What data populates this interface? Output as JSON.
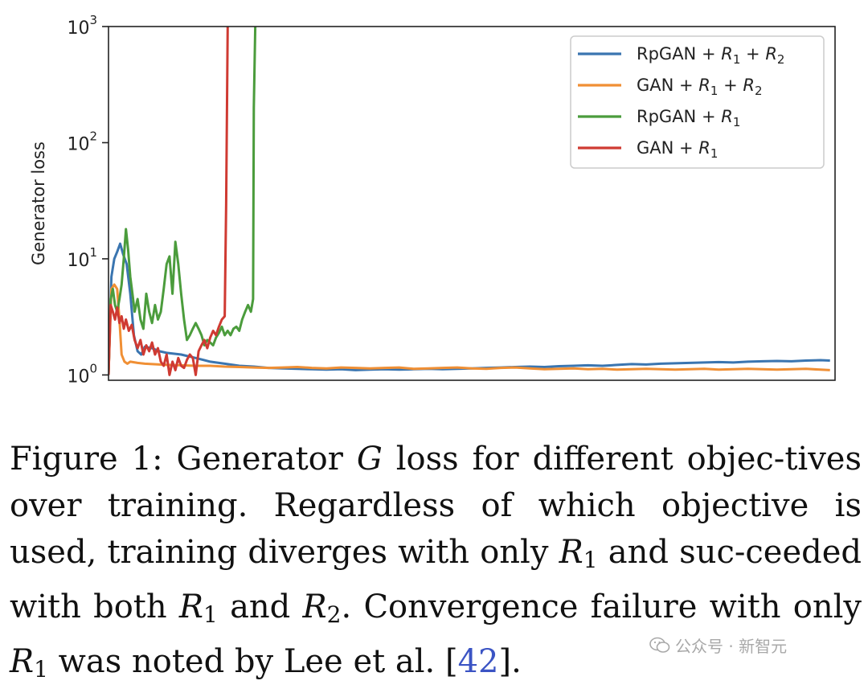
{
  "chart_data": {
    "type": "line",
    "title": "",
    "xlabel": "",
    "ylabel": "Generator loss",
    "yscale": "log",
    "ylim": [
      0.9,
      1000
    ],
    "xlim": [
      0,
      1000
    ],
    "yticks": [
      {
        "value": 1,
        "base": "10",
        "exp": "0"
      },
      {
        "value": 10,
        "base": "10",
        "exp": "1"
      },
      {
        "value": 100,
        "base": "10",
        "exp": "2"
      },
      {
        "value": 1000,
        "base": "10",
        "exp": "3"
      }
    ],
    "grid": false,
    "legend_position": "top-right",
    "series": [
      {
        "legend": {
          "prefix": "RpGAN + ",
          "terms": [
            {
              "sym": "R",
              "sub": "1"
            },
            {
              "sym": "R",
              "sub": "2"
            }
          ]
        },
        "color": "#3a75b0",
        "x": [
          0,
          4,
          8,
          12,
          16,
          20,
          25,
          30,
          35,
          40,
          45,
          50,
          60,
          70,
          80,
          100,
          120,
          140,
          160,
          180,
          200,
          220,
          240,
          260,
          280,
          300,
          320,
          340,
          360,
          380,
          400,
          420,
          440,
          460,
          480,
          500,
          520,
          540,
          560,
          580,
          600,
          620,
          640,
          660,
          680,
          700,
          720,
          740,
          760,
          780,
          800,
          820,
          840,
          860,
          880,
          900,
          920,
          940,
          960,
          980,
          993
        ],
        "y": [
          1.0,
          7.0,
          10.0,
          11.5,
          13.5,
          11.0,
          9.0,
          5.0,
          2.2,
          1.6,
          1.5,
          1.75,
          1.7,
          1.6,
          1.55,
          1.5,
          1.4,
          1.3,
          1.25,
          1.2,
          1.18,
          1.15,
          1.14,
          1.13,
          1.12,
          1.11,
          1.12,
          1.1,
          1.11,
          1.12,
          1.11,
          1.12,
          1.13,
          1.12,
          1.13,
          1.14,
          1.15,
          1.16,
          1.17,
          1.18,
          1.17,
          1.19,
          1.2,
          1.21,
          1.2,
          1.22,
          1.24,
          1.23,
          1.25,
          1.26,
          1.27,
          1.28,
          1.29,
          1.28,
          1.3,
          1.31,
          1.32,
          1.31,
          1.33,
          1.34,
          1.33
        ]
      },
      {
        "legend": {
          "prefix": "GAN + ",
          "terms": [
            {
              "sym": "R",
              "sub": "1"
            },
            {
              "sym": "R",
              "sub": "2"
            }
          ]
        },
        "color": "#f08f34",
        "x": [
          0,
          4,
          8,
          12,
          15,
          18,
          22,
          26,
          30,
          40,
          50,
          60,
          80,
          100,
          120,
          140,
          160,
          180,
          200,
          220,
          240,
          260,
          280,
          300,
          320,
          340,
          360,
          380,
          400,
          420,
          440,
          460,
          480,
          500,
          520,
          540,
          560,
          580,
          600,
          620,
          640,
          660,
          680,
          700,
          720,
          740,
          760,
          780,
          800,
          820,
          840,
          860,
          880,
          900,
          920,
          940,
          960,
          980,
          993
        ],
        "y": [
          1.0,
          5.5,
          6.0,
          5.5,
          3.0,
          1.5,
          1.3,
          1.25,
          1.3,
          1.27,
          1.25,
          1.24,
          1.22,
          1.21,
          1.2,
          1.2,
          1.18,
          1.17,
          1.16,
          1.15,
          1.16,
          1.17,
          1.15,
          1.14,
          1.16,
          1.15,
          1.14,
          1.15,
          1.16,
          1.13,
          1.14,
          1.15,
          1.16,
          1.14,
          1.13,
          1.15,
          1.16,
          1.14,
          1.12,
          1.13,
          1.14,
          1.12,
          1.13,
          1.11,
          1.12,
          1.13,
          1.12,
          1.11,
          1.12,
          1.13,
          1.11,
          1.12,
          1.13,
          1.12,
          1.11,
          1.12,
          1.13,
          1.11,
          1.1
        ]
      },
      {
        "legend": {
          "prefix": "RpGAN + ",
          "terms": [
            {
              "sym": "R",
              "sub": "1"
            }
          ]
        },
        "color": "#4b9c3c",
        "x": [
          0,
          3,
          6,
          9,
          12,
          15,
          18,
          21,
          24,
          27,
          30,
          33,
          36,
          40,
          44,
          48,
          52,
          56,
          60,
          64,
          68,
          72,
          76,
          80,
          84,
          88,
          92,
          96,
          100,
          104,
          108,
          112,
          116,
          120,
          124,
          128,
          132,
          136,
          140,
          144,
          148,
          152,
          156,
          160,
          164,
          168,
          172,
          176,
          180,
          184,
          188,
          192,
          196,
          199,
          200,
          202
        ],
        "y": [
          1.0,
          4.5,
          5.5,
          4.0,
          3.5,
          4.5,
          6.0,
          10.0,
          18.0,
          12.0,
          7.0,
          5.0,
          3.5,
          4.5,
          3.0,
          2.5,
          5.0,
          3.5,
          2.8,
          4.0,
          3.0,
          3.5,
          5.5,
          9.0,
          10.5,
          5.0,
          14.0,
          9.0,
          5.0,
          3.0,
          2.0,
          2.2,
          2.5,
          2.8,
          2.5,
          2.2,
          1.8,
          2.0,
          1.9,
          1.8,
          2.1,
          2.3,
          2.6,
          2.2,
          2.4,
          2.2,
          2.5,
          2.6,
          2.4,
          3.0,
          3.5,
          4.0,
          3.5,
          4.5,
          200,
          1000
        ]
      },
      {
        "legend": {
          "prefix": "GAN + ",
          "terms": [
            {
              "sym": "R",
              "sub": "1"
            }
          ]
        },
        "color": "#cf3a32",
        "x": [
          0,
          3,
          6,
          9,
          12,
          15,
          18,
          21,
          24,
          28,
          32,
          36,
          40,
          44,
          48,
          52,
          56,
          60,
          64,
          68,
          72,
          76,
          80,
          84,
          88,
          92,
          96,
          100,
          104,
          108,
          112,
          116,
          120,
          124,
          128,
          132,
          136,
          140,
          144,
          148,
          152,
          156,
          160,
          162,
          164
        ],
        "y": [
          1.0,
          4.0,
          3.5,
          3.0,
          3.8,
          2.8,
          3.2,
          2.5,
          3.0,
          2.4,
          2.7,
          2.0,
          1.7,
          2.0,
          1.5,
          1.8,
          1.6,
          1.9,
          1.5,
          1.7,
          1.3,
          1.2,
          1.5,
          1.0,
          1.3,
          1.1,
          1.4,
          1.2,
          1.15,
          1.35,
          1.5,
          1.4,
          1.0,
          1.6,
          1.8,
          2.0,
          1.7,
          2.1,
          2.4,
          2.2,
          2.6,
          3.0,
          3.2,
          30,
          1000
        ]
      }
    ]
  },
  "caption": {
    "segments": [
      {
        "t": "Figure 1:  Generator "
      },
      {
        "t": "G",
        "i": true
      },
      {
        "t": " loss for different objec-tives over training. Regardless of which objective is used, training diverges with only "
      },
      {
        "t": "R",
        "i": true
      },
      {
        "t": "1",
        "sub": true
      },
      {
        "t": " and suc-ceeded with both "
      },
      {
        "t": "R",
        "i": true
      },
      {
        "t": "1",
        "sub": true
      },
      {
        "t": " and "
      },
      {
        "t": "R",
        "i": true
      },
      {
        "t": "2",
        "sub": true
      },
      {
        "t": ". Convergence failure with only "
      },
      {
        "t": "R",
        "i": true
      },
      {
        "t": "1",
        "sub": true
      },
      {
        "t": " was noted by Lee et al. ["
      },
      {
        "t": "42",
        "ref": true
      },
      {
        "t": "]."
      }
    ]
  },
  "watermark": {
    "text": "公众号 · 新智元",
    "icon": "wechat-icon"
  }
}
